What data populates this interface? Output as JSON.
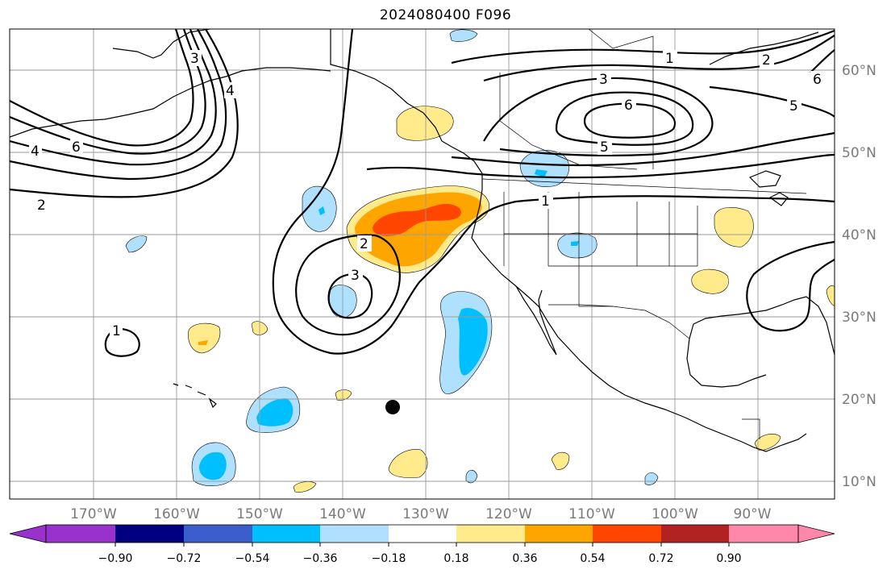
{
  "title": "2024080400 F096",
  "lon_labels": [
    "170°W",
    "160°W",
    "150°W",
    "140°W",
    "130°W",
    "120°W",
    "110°W",
    "100°W",
    "90°W"
  ],
  "lat_labels": [
    "60°N",
    "50°N",
    "40°N",
    "30°N",
    "20°N",
    "10°N"
  ],
  "colorbar": {
    "colors": [
      "#9932cc",
      "#000080",
      "#3a5fcd",
      "#00bfff",
      "#afe1ff",
      "#ffffff",
      "#ffeb8c",
      "#ffa500",
      "#ff4500",
      "#b22222",
      "#ff88aa"
    ],
    "labels": [
      "−0.90",
      "−0.72",
      "−0.54",
      "−0.36",
      "−0.18",
      "0.18",
      "0.36",
      "0.54",
      "0.72",
      "0.90"
    ]
  },
  "contour_labels": [
    "1",
    "2",
    "3",
    "4",
    "5",
    "6"
  ],
  "colors": {
    "grid": "#9a9a9a",
    "axis_label": "#7a7a7a"
  }
}
